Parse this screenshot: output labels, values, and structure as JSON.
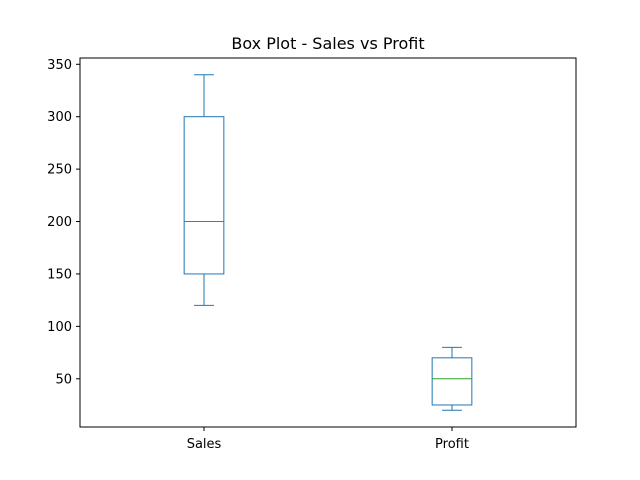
{
  "chart_data": {
    "type": "box",
    "title": "Box Plot - Sales vs Profit",
    "xlabel": "",
    "ylabel": "",
    "categories": [
      "Sales",
      "Profit"
    ],
    "boxes": [
      {
        "label": "Sales",
        "whisker_low": 120,
        "q1": 150,
        "median": 200,
        "q3": 300,
        "whisker_high": 340
      },
      {
        "label": "Profit",
        "whisker_low": 20,
        "q1": 25,
        "median": 50,
        "q3": 70,
        "whisker_high": 80
      }
    ],
    "ylim": [
      4,
      356
    ],
    "yticks": [
      50,
      100,
      150,
      200,
      250,
      300,
      350
    ],
    "grid": false,
    "legend": "none",
    "colors": {
      "box": "#1f77b4",
      "median": "#2ca02c",
      "axes": "#000000"
    }
  }
}
